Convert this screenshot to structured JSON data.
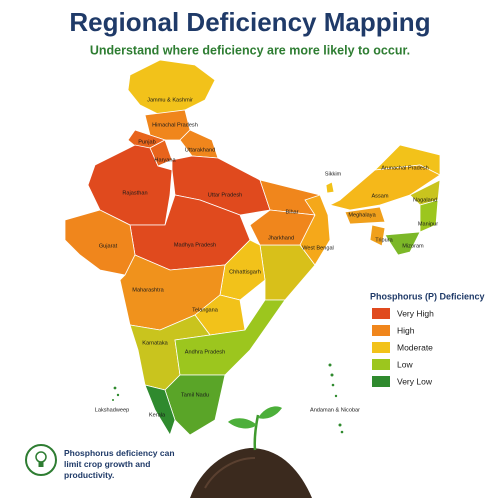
{
  "header": {
    "title": "Regional Deficiency Mapping",
    "subtitle": "Understand where deficiency are more likely to occur."
  },
  "regions": [
    {
      "label": "Jammu & Kashmir",
      "color": "#f2c21a"
    },
    {
      "label": "Himachal Pradesh",
      "color": "#f0861c"
    },
    {
      "label": "Punjab",
      "color": "#e8641c"
    },
    {
      "label": "Haryana",
      "color": "#e8641c"
    },
    {
      "label": "Uttarakhand",
      "color": "#f0861c"
    },
    {
      "label": "Rajasthan",
      "color": "#e04a1e"
    },
    {
      "label": "Uttar Pradesh",
      "color": "#e04a1e"
    },
    {
      "label": "Madhya Pradesh",
      "color": "#e04a1e"
    },
    {
      "label": "Gujarat",
      "color": "#f0861c"
    },
    {
      "label": "Bihar",
      "color": "#f0861c"
    },
    {
      "label": "Jharkhand",
      "color": "#f0861c"
    },
    {
      "label": "West Bengal",
      "color": "#f5a81a"
    },
    {
      "label": "Chhattisgarh",
      "color": "#f2c21a"
    },
    {
      "label": "Maharashtra",
      "color": "#f0921c"
    },
    {
      "label": "Telangana",
      "color": "#f2c21a"
    },
    {
      "label": "Karnataka",
      "color": "#c9c41e"
    },
    {
      "label": "Andhra Pradesh",
      "color": "#9cc61e"
    },
    {
      "label": "Tamil Nadu",
      "color": "#5aa528"
    },
    {
      "label": "Kerala",
      "color": "#2f8a2e"
    },
    {
      "label": "Sikkim",
      "color": "#f2c21a"
    },
    {
      "label": "Arunachal Pradesh",
      "color": "#f2c21a"
    },
    {
      "label": "Assam",
      "color": "#f5b81a"
    },
    {
      "label": "Nagaland",
      "color": "#c9c41e"
    },
    {
      "label": "Meghalaya",
      "color": "#f0a01c"
    },
    {
      "label": "Manipur",
      "color": "#9cc61e"
    },
    {
      "label": "Tripura",
      "color": "#f0a01c"
    },
    {
      "label": "Mizoram",
      "color": "#7cb828"
    },
    {
      "label": "Lakshadweep",
      "color": "#2f8a2e"
    },
    {
      "label": "Andaman & Nicobar",
      "color": "#2f8a2e"
    }
  ],
  "legend": {
    "title": "Phosphorus (P) Deficiency",
    "items": [
      {
        "label": "Very High",
        "color": "#e04a1e"
      },
      {
        "label": "High",
        "color": "#f0861c"
      },
      {
        "label": "Moderate",
        "color": "#f2c21a"
      },
      {
        "label": "Low",
        "color": "#9cc61e"
      },
      {
        "label": "Very Low",
        "color": "#2f8a2e"
      }
    ]
  },
  "note": {
    "text": "Phosphorus deficiency can limit crop growth and productivity."
  }
}
